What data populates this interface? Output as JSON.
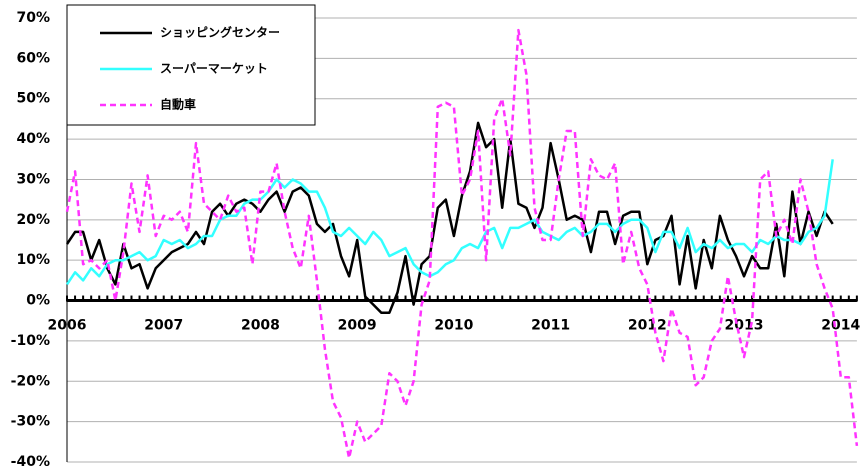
{
  "chart_data": {
    "type": "line",
    "categories": [
      "2006",
      null,
      null,
      null,
      null,
      null,
      null,
      null,
      null,
      null,
      null,
      null,
      "2007",
      null,
      null,
      null,
      null,
      null,
      null,
      null,
      null,
      null,
      null,
      null,
      "2008",
      null,
      null,
      null,
      null,
      null,
      null,
      null,
      null,
      null,
      null,
      null,
      "2009",
      null,
      null,
      null,
      null,
      null,
      null,
      null,
      null,
      null,
      null,
      null,
      "2010",
      null,
      null,
      null,
      null,
      null,
      null,
      null,
      null,
      null,
      null,
      null,
      "2011",
      null,
      null,
      null,
      null,
      null,
      null,
      null,
      null,
      null,
      null,
      null,
      "2012",
      null,
      null,
      null,
      null,
      null,
      null,
      null,
      null,
      null,
      null,
      null,
      "2013",
      null,
      null,
      null,
      null,
      null,
      null,
      null,
      null,
      null,
      null,
      null,
      "2014",
      null,
      null
    ],
    "series": [
      {
        "name": "ショッピングセンター",
        "color": "#000000",
        "dashed": false,
        "values": [
          14,
          17,
          17,
          10,
          15,
          8,
          4,
          14,
          8,
          9,
          3,
          8,
          10,
          12,
          13,
          14,
          17,
          14,
          22,
          24,
          21,
          24,
          25,
          24,
          22,
          25,
          27,
          22,
          27,
          28,
          26,
          19,
          17,
          19,
          11,
          6,
          15,
          1,
          -1,
          -3,
          -3,
          2,
          11,
          -1,
          9,
          11,
          23,
          25,
          16,
          26,
          32,
          44,
          38,
          40,
          23,
          40,
          24,
          23,
          18,
          23,
          39,
          30,
          20,
          21,
          20,
          12,
          22,
          22,
          14,
          21,
          22,
          22,
          9,
          15,
          16,
          21,
          4,
          16,
          3,
          15,
          8,
          21,
          15,
          11,
          6,
          11,
          8,
          8,
          19,
          6,
          27,
          14,
          22,
          16,
          22,
          19,
          null,
          null,
          null
        ]
      },
      {
        "name": "スーパーマーケット",
        "color": "#33ffff",
        "dashed": false,
        "values": [
          4,
          7,
          5,
          8,
          6,
          9,
          10,
          10,
          11,
          12,
          10,
          11,
          15,
          14,
          15,
          13,
          14,
          16,
          16,
          20,
          21,
          21,
          24,
          25,
          25,
          27,
          30,
          28,
          30,
          29,
          27,
          27,
          23,
          17,
          16,
          18,
          16,
          14,
          17,
          15,
          11,
          12,
          13,
          9,
          7,
          6,
          7,
          9,
          10,
          13,
          14,
          13,
          17,
          18,
          13,
          18,
          18,
          19,
          20,
          17,
          16,
          15,
          17,
          18,
          16,
          17,
          19,
          19,
          17,
          19,
          20,
          20,
          18,
          12,
          17,
          17,
          13,
          18,
          12,
          14,
          13,
          15,
          13,
          14,
          14,
          12,
          15,
          14,
          16,
          15,
          15,
          14,
          17,
          18,
          21,
          35,
          null,
          null,
          null
        ]
      },
      {
        "name": "自動車",
        "color": "#ff33ff",
        "dashed": true,
        "values": [
          22,
          32,
          9,
          10,
          8,
          10,
          0,
          12,
          29,
          17,
          31,
          16,
          21,
          20,
          22,
          17,
          39,
          24,
          22,
          20,
          26,
          22,
          23,
          9,
          27,
          27,
          34,
          22,
          13,
          8,
          21,
          5,
          -12,
          -25,
          -29,
          -39,
          -30,
          -35,
          -33,
          -31,
          -18,
          -20,
          -26,
          -20,
          -1,
          5,
          48,
          49,
          48,
          26,
          30,
          42,
          10,
          45,
          50,
          36,
          67,
          56,
          23,
          15,
          15,
          30,
          42,
          42,
          16,
          35,
          31,
          30,
          34,
          9,
          17,
          8,
          4,
          -8,
          -15,
          -2,
          -8,
          -9,
          -21,
          -19,
          -10,
          -7,
          6,
          -5,
          -14,
          -5,
          30,
          32,
          16,
          20,
          14,
          30,
          22,
          9,
          3,
          -2,
          -19,
          -19,
          -36
        ]
      }
    ],
    "ylim": [
      -40,
      70
    ],
    "yticks": [
      {
        "value": -40,
        "label": "-40%"
      },
      {
        "value": -30,
        "label": "-30%"
      },
      {
        "value": -20,
        "label": "-20%"
      },
      {
        "value": -10,
        "label": "-10%"
      },
      {
        "value": 0,
        "label": "0%"
      },
      {
        "value": 10,
        "label": "10%"
      },
      {
        "value": 20,
        "label": "20%"
      },
      {
        "value": 30,
        "label": "30%"
      },
      {
        "value": 40,
        "label": "40%"
      },
      {
        "value": 50,
        "label": "50%"
      },
      {
        "value": 60,
        "label": "60%"
      },
      {
        "value": 70,
        "label": "70%"
      }
    ],
    "grid": true,
    "legend": "upper left"
  }
}
